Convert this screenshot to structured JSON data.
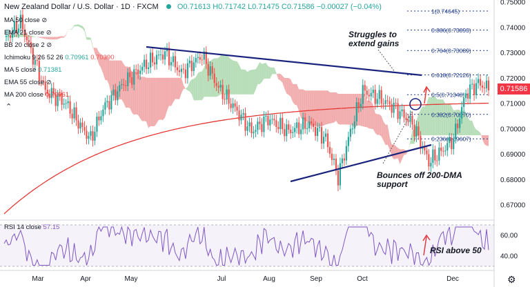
{
  "header": {
    "symbol": "New Zealand Dollar / U.S. Dollar · 1D · FXCM",
    "ohlc": "O0.71613  H0.71742  L0.71475  C0.71586  −0.00027 (−0.04%)"
  },
  "indicators": {
    "ma50": "MA 50 close",
    "ema21": "EMA 21 close",
    "bb20": "BB 20 close 2",
    "ichimoku_name": "Ichimoku 9 26 52 26",
    "ichimoku_v1": "0.70961",
    "ichimoku_v2": "0.70390",
    "ma5_name": "MA 5 close",
    "ma5_val": "0.71381",
    "ema55": "EMA 55 close",
    "ma200_name": "MA 200 close",
    "ma200_val": "0.70961",
    "rsi_name": "RSI 14 close",
    "rsi_val": "57.15"
  },
  "annotations": {
    "struggles": [
      "Struggles to",
      "extend gains"
    ],
    "bounces": [
      "Bounces off 200-DMA",
      "support"
    ],
    "rsi": "RSI above 50"
  },
  "chart_data": {
    "type": "candlestick",
    "price_axis": {
      "ticks": [
        "0.75000",
        "0.74000",
        "0.73000",
        "0.72000",
        "0.71000",
        "0.70000",
        "0.69000",
        "0.68000",
        "0.67000"
      ],
      "ylim": [
        0.665,
        0.7505
      ]
    },
    "rsi_axis": {
      "ticks": [
        "60.00",
        "40.00"
      ]
    },
    "time_axis": [
      "Mar",
      "Apr",
      "May",
      "Jul",
      "Aug",
      "Sep",
      "Oct",
      "Dec"
    ],
    "last_price": "0.71586",
    "last_price_color": "#f23645",
    "fib_levels": [
      {
        "label": "1(0.74645)",
        "value": 0.74645
      },
      {
        "label": "0.886(0.73893)",
        "value": 0.73893
      },
      {
        "label": "0.764(0.73089)",
        "value": 0.73089
      },
      {
        "label": "0.618(0.72126)",
        "value": 0.72126
      },
      {
        "label": "0.5(0.71348)",
        "value": 0.71348
      },
      {
        "label": "0.382(0.70570)",
        "value": 0.7057
      },
      {
        "label": "0.236(0.69607)",
        "value": 0.69607
      }
    ],
    "colors": {
      "up": "#26a69a",
      "down": "#ef5350",
      "ma200": "#e53935",
      "trendline": "#1a237e",
      "rsi": "#7e57c2",
      "cloud_bull": "#a5d6a7",
      "cloud_bear": "#ef9a9a"
    }
  }
}
